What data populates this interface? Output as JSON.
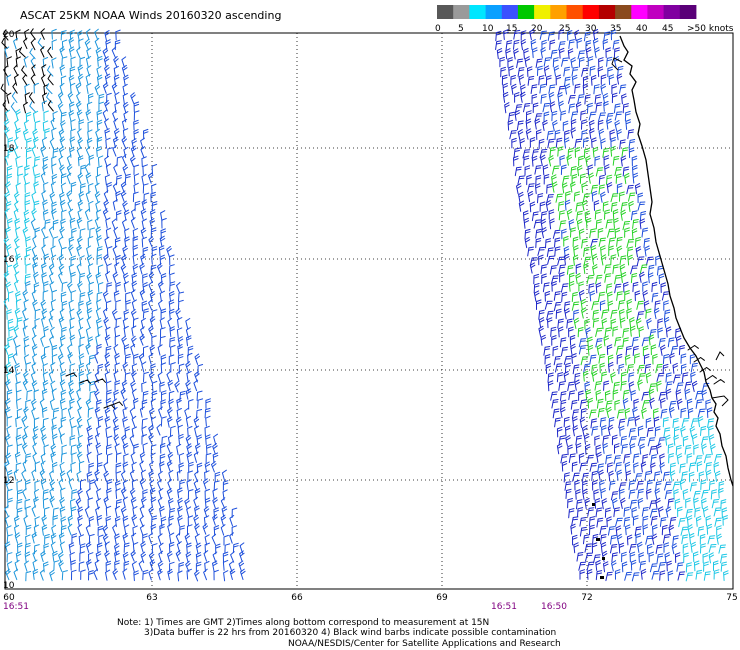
{
  "header": {
    "title": "ASCAT 25KM NOAA Winds 20160320 ascending"
  },
  "legend": {
    "swatches": [
      "#585858",
      "#9a9a9a",
      "#00e6ff",
      "#0aa0ff",
      "#3b50ff",
      "#00c800",
      "#f0f000",
      "#ffa000",
      "#ff5000",
      "#ff0000",
      "#b40000",
      "#8a4a1e",
      "#ff00ff",
      "#c000c0",
      "#8000a0",
      "#5a0078"
    ],
    "labels": [
      "0",
      "5",
      "10",
      "15",
      "20",
      "25",
      "30",
      "35",
      "40",
      "45",
      ">50 knots"
    ]
  },
  "map": {
    "lat_labels": [
      "20",
      "18",
      "16",
      "14",
      "12",
      "10"
    ],
    "lon_labels": [
      "60",
      "63",
      "66",
      "69",
      "72",
      "75"
    ],
    "time_labels": [
      "16:51",
      "16:51",
      "16:50"
    ],
    "barb_colors": {
      "cyan": "#1ec8e6",
      "lightblue": "#1e96dc",
      "blue": "#1e50dc",
      "darkblue": "#1e28c8",
      "green": "#28d228",
      "black": "#000000"
    },
    "coast_color": "#000000"
  },
  "notes": {
    "line1": "Note: 1) Times are GMT 2)Times along bottom correspond to measurement at 15N",
    "line2": "3)Data buffer is 22 hrs from 20160320 4) Black wind barbs indicate possible contamination",
    "line3": "NOAA/NESDIS/Center for Satellite Applications and Research"
  }
}
